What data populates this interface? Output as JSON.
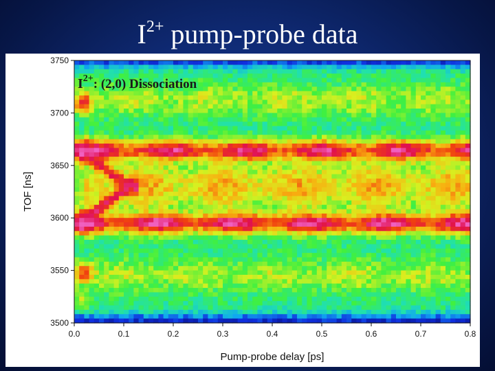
{
  "slide": {
    "title_base": "I",
    "title_sup": "2+",
    "title_rest": " pump-probe data"
  },
  "chart_data": {
    "type": "heatmap",
    "title": "",
    "annotation": {
      "base": "I",
      "sup": "2+",
      "text": ": (2,0) Dissociation"
    },
    "xlabel": "Pump-probe delay [ps]",
    "ylabel": "TOF [ns]",
    "xlim": [
      0.0,
      0.8
    ],
    "ylim": [
      3500,
      3750
    ],
    "xticks": [
      "0.0",
      "0.1",
      "0.2",
      "0.3",
      "0.4",
      "0.5",
      "0.6",
      "0.7",
      "0.8"
    ],
    "yticks": [
      "3500",
      "3550",
      "3600",
      "3650",
      "3700",
      "3750"
    ],
    "colormap": [
      "#0a1aa0",
      "#1030e0",
      "#10a8f0",
      "#20e0b0",
      "#40f040",
      "#d8f020",
      "#f8b010",
      "#f04010",
      "#e01050",
      "#f060c0"
    ],
    "bands": [
      {
        "center_tof": 3664,
        "width_tof": 7,
        "peak": 0.86,
        "modulation": 0.12
      },
      {
        "center_tof": 3595,
        "width_tof": 7,
        "peak": 0.88,
        "modulation": 0.12
      },
      {
        "center_tof": 3630,
        "width_tof": 17,
        "peak": 0.62,
        "modulation": 0.08
      },
      {
        "center_tof": 3712,
        "width_tof": 11,
        "peak": 0.52,
        "modulation": 0.05
      },
      {
        "center_tof": 3545,
        "width_tof": 11,
        "peak": 0.52,
        "modulation": 0.05
      }
    ],
    "early_features": [
      {
        "delay_ps": 0.02,
        "tof": 3664,
        "intensity": 1.0
      },
      {
        "delay_ps": 0.02,
        "tof": 3596,
        "intensity": 1.0
      },
      {
        "delay_ps": 0.02,
        "tof": 3709,
        "intensity": 0.85
      },
      {
        "delay_ps": 0.02,
        "tof": 3548,
        "intensity": 0.8
      },
      {
        "delay_ps": 0.02,
        "tof": 3522,
        "intensity": 0.55
      }
    ],
    "dissociation_channel": {
      "start_delay_ps": 0.02,
      "end_delay_ps": 0.11,
      "tof_center": 3630,
      "tof_start_offset": 32,
      "tof_end_offset": 0,
      "intensity": 0.88
    }
  }
}
